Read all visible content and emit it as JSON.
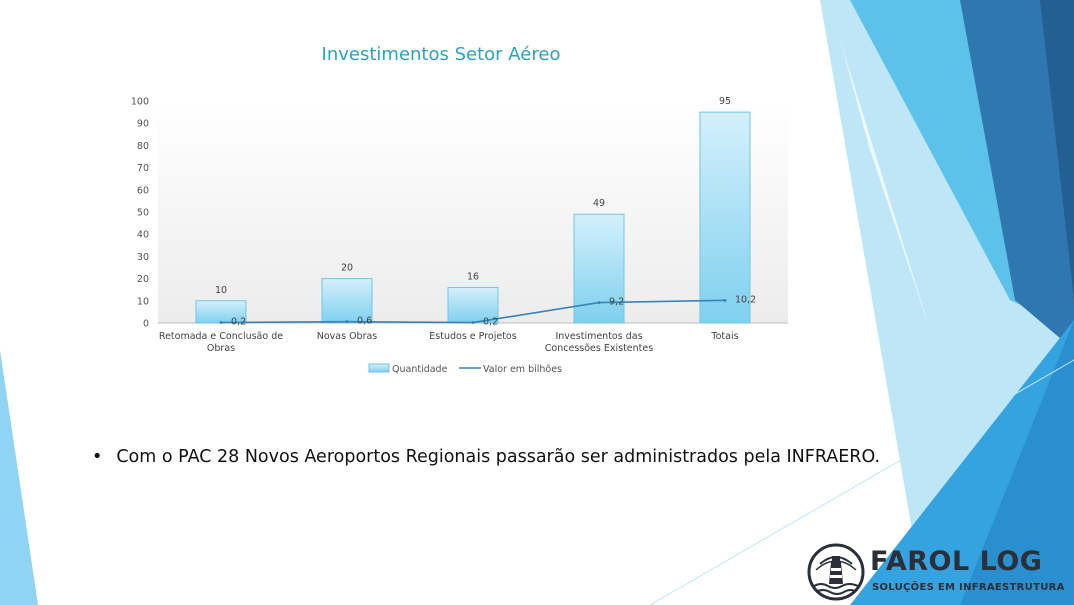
{
  "slide": {
    "bullet_symbol": "•",
    "bullet_text": "Com o PAC 28 Novos Aeroportos Regionais passarão ser administrados pela INFRAERO."
  },
  "logo": {
    "name": "FAROL LOG",
    "tagline": "SOLUÇÕES EM INFRAESTRUTURA",
    "icon": "lighthouse-icon"
  },
  "colors": {
    "title": "#2aa2c6",
    "bar_top": "#d4f0fb",
    "bar_bottom": "#7fd0ef",
    "line": "#3b82b8",
    "decor_dark": "#2a6ea4",
    "decor_mid": "#35a3e0",
    "decor_light": "#8fd4f2"
  },
  "chart_data": {
    "type": "bar",
    "title": "Investimentos Setor Aéreo",
    "categories": [
      [
        "Retomada e Conclusão de",
        "Obras"
      ],
      [
        "Novas Obras"
      ],
      [
        "Estudos e Projetos"
      ],
      [
        "Investimentos das",
        "Concessões Existentes"
      ],
      [
        "Totais"
      ]
    ],
    "series": [
      {
        "name": "Quantidade",
        "kind": "bar",
        "values": [
          10,
          20,
          16,
          49,
          95
        ],
        "labels": [
          "10",
          "20",
          "16",
          "49",
          "95"
        ]
      },
      {
        "name": "Valor em bilhões",
        "kind": "line",
        "values": [
          0.2,
          0.6,
          0.2,
          9.2,
          10.2
        ],
        "labels": [
          "0,2",
          "0,6",
          "0,2",
          "9,2",
          "10,2"
        ]
      }
    ],
    "ylim": [
      0,
      100
    ],
    "yticks": [
      0,
      10,
      20,
      30,
      40,
      50,
      60,
      70,
      80,
      90,
      100
    ],
    "grid": false,
    "legend_position": "bottom"
  }
}
